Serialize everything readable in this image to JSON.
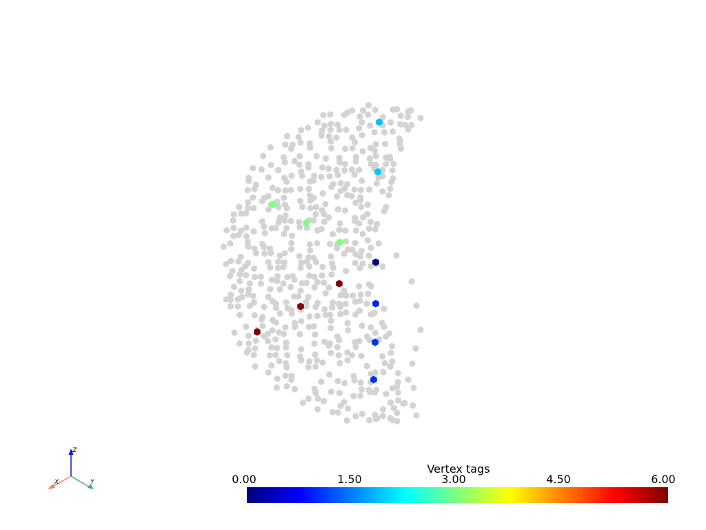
{
  "render": {
    "background": "#ffffff",
    "default_point_color": "#d3d3d3",
    "glyph": "hexagon"
  },
  "colorbar": {
    "title": "Vertex tags",
    "min": 0,
    "max": 6,
    "tick_labels": [
      "0.00",
      "1.50",
      "3.00",
      "4.50",
      "6.00"
    ],
    "colormap": "jet",
    "stops": [
      "#00007f",
      "#0000ff",
      "#007fff",
      "#00ffff",
      "#7fff7f",
      "#ffff00",
      "#ff7f00",
      "#ff0000",
      "#7f0000"
    ]
  },
  "tagged_vertices": [
    {
      "tag": 0,
      "color": "#00007f"
    },
    {
      "tag": 1,
      "color": "#0022ff"
    },
    {
      "tag": 1,
      "color": "#0030ff"
    },
    {
      "tag": 1,
      "color": "#0030ff"
    },
    {
      "tag": 2,
      "color": "#00bfff"
    },
    {
      "tag": 2,
      "color": "#00c8ff"
    },
    {
      "tag": 3,
      "color": "#7fff7f"
    },
    {
      "tag": 3,
      "color": "#7fff7f"
    },
    {
      "tag": 3,
      "color": "#7fff7f"
    },
    {
      "tag": 6,
      "color": "#7f0000"
    },
    {
      "tag": 6,
      "color": "#7f0000"
    },
    {
      "tag": 6,
      "color": "#7f0000"
    }
  ],
  "orientation_axes": {
    "x": {
      "label": "X",
      "color": "#f08060"
    },
    "y": {
      "label": "Y",
      "color": "#40b070"
    },
    "z": {
      "label": "Z",
      "color": "#1010e0"
    }
  }
}
